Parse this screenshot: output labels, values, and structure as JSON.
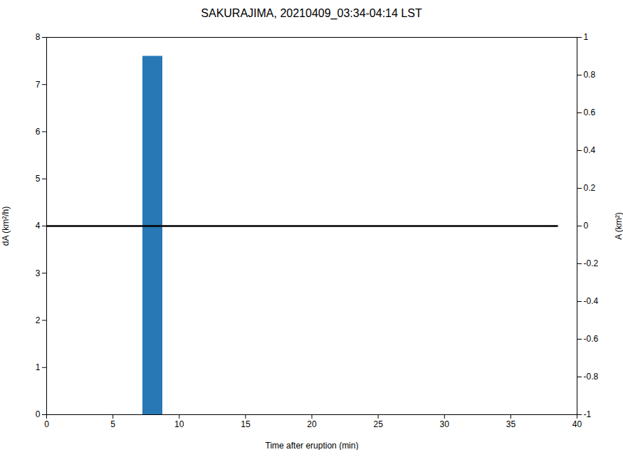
{
  "chart_data": {
    "type": "bar",
    "title": "SAKURAJIMA, 20210409_03:34-04:14 LST",
    "xlabel": "Time after eruption (min)",
    "ylabel": "dA (km²/h)",
    "y2label": "A (km²)",
    "xlim": [
      0,
      40
    ],
    "ylim": [
      0,
      8
    ],
    "y2lim": [
      -1,
      1
    ],
    "xticks": [
      0,
      5,
      10,
      15,
      20,
      25,
      30,
      35,
      40
    ],
    "yticks": [
      0,
      1,
      2,
      3,
      4,
      5,
      6,
      7,
      8
    ],
    "y2ticks": [
      -1,
      -0.8,
      -0.6,
      -0.4,
      -0.2,
      0,
      0.2,
      0.4,
      0.6,
      0.8,
      1
    ],
    "series": [
      {
        "type": "bar",
        "x": [
          8.0
        ],
        "values": [
          7.6
        ],
        "widths": [
          1.5
        ],
        "color": "#2878b5"
      },
      {
        "type": "line",
        "x": [
          0,
          38.5
        ],
        "values": [
          4.0,
          4.0
        ],
        "color": "black"
      }
    ]
  }
}
